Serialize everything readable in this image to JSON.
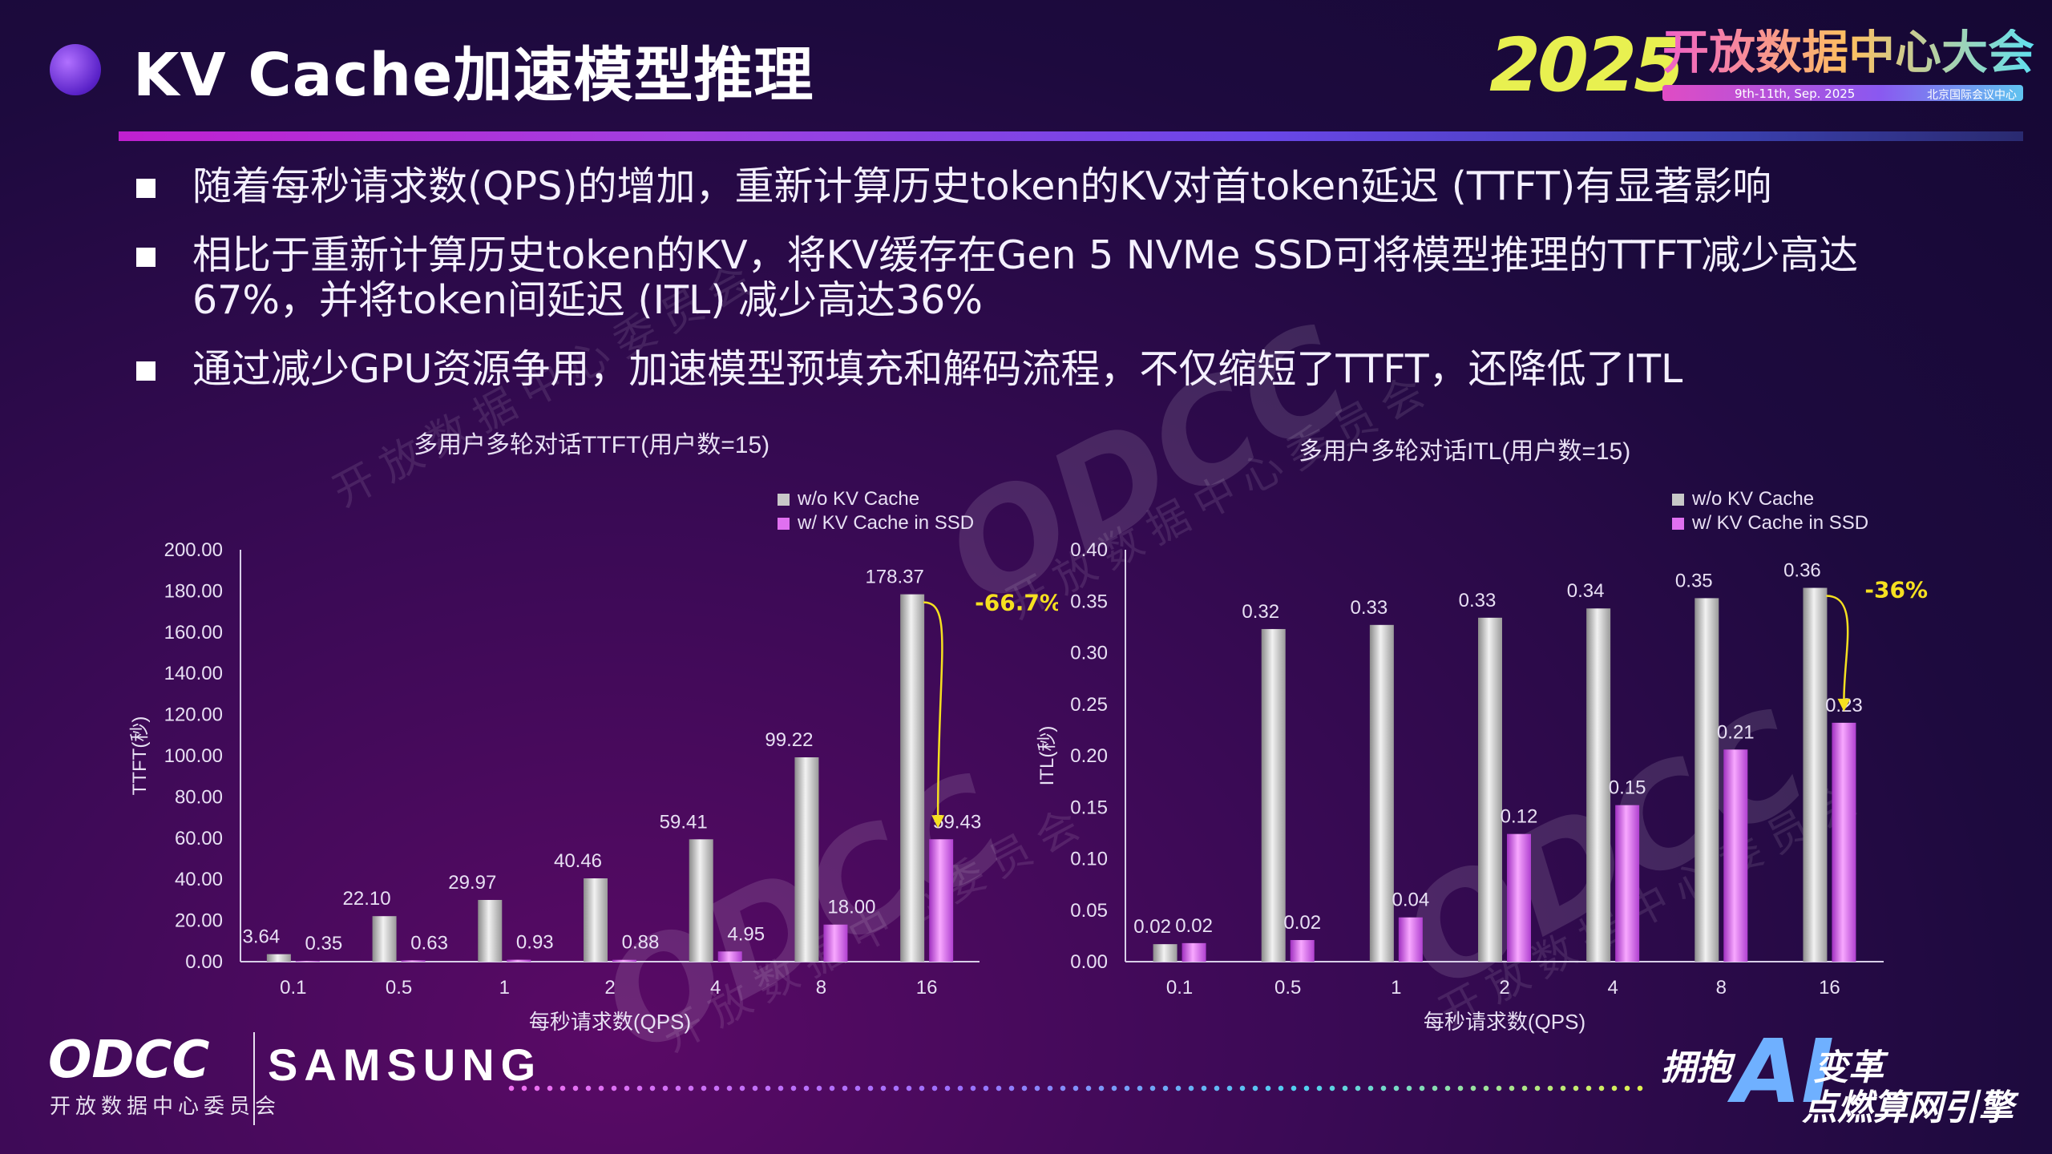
{
  "title": "KV Cache加速模型推理",
  "brand": {
    "year": "2025",
    "name": "开放数据中心大会",
    "dates": "9th-11th, Sep. 2025",
    "location": "北京国际会议中心"
  },
  "bullets": [
    "随着每秒请求数(QPS)的增加，重新计算历史token的KV对首token延迟 (TTFT)有显著影响",
    "相比于重新计算历史token的KV，将KV缓存在Gen 5 NVMe SSD可将模型推理的TTFT减少高达67%，并将token间延迟 (ITL) 减少高达36%",
    "通过减少GPU资源争用，加速模型预填充和解码流程，不仅缩短了TTFT，还降低了ITL"
  ],
  "watermark": {
    "logo": "ODCC",
    "text": "开放数据中心委员会"
  },
  "chart_data": [
    {
      "type": "bar",
      "title": "多用户多轮对话TTFT(用户数=15)",
      "xlabel": "每秒请求数(QPS)",
      "ylabel": "TTFT(秒)",
      "categories": [
        "0.1",
        "0.5",
        "1",
        "2",
        "4",
        "8",
        "16"
      ],
      "series": [
        {
          "name": "w/o KV Cache",
          "values": [
            3.64,
            22.1,
            29.97,
            40.46,
            59.41,
            99.22,
            178.37
          ],
          "labels": [
            "3.64",
            "22.10",
            "29.97",
            "40.46",
            "59.41",
            "99.22",
            "178.37"
          ]
        },
        {
          "name": "w/ KV Cache in SSD",
          "values": [
            0.35,
            0.63,
            0.93,
            0.88,
            4.95,
            18.0,
            59.43
          ],
          "labels": [
            "0.35",
            "0.63",
            "0.93",
            "0.88",
            "4.95",
            "18.00",
            "59.43"
          ]
        }
      ],
      "ylim": [
        0,
        200
      ],
      "yticks": [
        "0.00",
        "20.00",
        "40.00",
        "60.00",
        "80.00",
        "100.00",
        "120.00",
        "140.00",
        "160.00",
        "180.00",
        "200.00"
      ],
      "grid": false,
      "legend": "top-right",
      "annotation": {
        "text": "-66.7%",
        "category": "16"
      }
    },
    {
      "type": "bar",
      "title": "多用户多轮对话ITL(用户数=15)",
      "xlabel": "每秒请求数(QPS)",
      "ylabel": "ITL(秒)",
      "categories": [
        "0.1",
        "0.5",
        "1",
        "2",
        "4",
        "8",
        "16"
      ],
      "series": [
        {
          "name": "w/o KV Cache",
          "values": [
            0.017,
            0.323,
            0.327,
            0.334,
            0.343,
            0.353,
            0.363
          ],
          "labels": [
            "0.02",
            "0.32",
            "0.33",
            "0.33",
            "0.34",
            "0.35",
            "0.36"
          ]
        },
        {
          "name": "w/ KV Cache in SSD",
          "values": [
            0.018,
            0.021,
            0.043,
            0.124,
            0.152,
            0.206,
            0.232
          ],
          "labels": [
            "0.02",
            "0.02",
            "0.04",
            "0.12",
            "0.15",
            "0.21",
            "0.23"
          ]
        }
      ],
      "ylim": [
        0,
        0.4
      ],
      "yticks": [
        "0.00",
        "0.05",
        "0.10",
        "0.15",
        "0.20",
        "0.25",
        "0.30",
        "0.35",
        "0.40"
      ],
      "grid": false,
      "legend": "top-right",
      "annotation": {
        "text": "-36%",
        "category": "16"
      }
    }
  ],
  "footer": {
    "odcc": "ODCC",
    "odcc_sub": "开放数据中心委员会",
    "sponsor": "SAMSUNG",
    "slogan_1": "拥抱",
    "slogan_ai": "AI",
    "slogan_2": "变革",
    "slogan_3": "点燃算网引擎"
  },
  "colors": {
    "series1": "#c8c8c8",
    "series2": "#e070f0",
    "annotation": "#f5e020"
  }
}
